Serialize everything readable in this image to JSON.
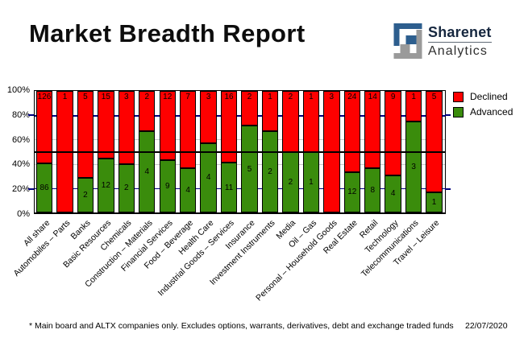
{
  "title": "Market Breadth Report",
  "logo": {
    "name": "Sharenet",
    "sub": "Analytics",
    "mark_blue": "#2d5e8e",
    "mark_gray": "#9a9a9a"
  },
  "legend": {
    "declined_label": "Declined",
    "advanced_label": "Advanced"
  },
  "colors": {
    "declined": "#fe0000",
    "advanced": "#3a8c0c",
    "grid_major": "#000080",
    "grid_minor": "#c8c8c8",
    "midline": "#000000"
  },
  "y_axis": {
    "tick_labels": [
      "100%",
      "80%",
      "60%",
      "40%",
      "20%",
      "0%"
    ],
    "tick_values": [
      100,
      80,
      60,
      40,
      20,
      0
    ],
    "outer_tick_values": [
      80,
      20
    ]
  },
  "chart_data": {
    "type": "bar",
    "stacked": true,
    "normalized_to_percent": true,
    "title": "Market Breadth Report",
    "xlabel": "",
    "ylabel": "",
    "ylim": [
      0,
      100
    ],
    "legend_position": "top-right",
    "midline_percent": 50,
    "gridlines": [
      {
        "value": 80,
        "style": "major"
      },
      {
        "value": 60,
        "style": "minor"
      },
      {
        "value": 40,
        "style": "minor"
      },
      {
        "value": 20,
        "style": "major"
      }
    ],
    "categories": [
      "All share",
      "Automobiles – Parts",
      "Banks",
      "Basic Resources",
      "Chemicals",
      "Construction – Materials",
      "Financial Services",
      "Food – Beverage",
      "Health Care",
      "Industrial Goods – Services",
      "Insurance",
      "Investment Instruments",
      "Media",
      "Oil – Gas",
      "Personal – Household Goods",
      "Real Estate",
      "Retail",
      "Technology",
      "Telecommunications",
      "Travel – Leisure"
    ],
    "series": [
      {
        "name": "Declined",
        "color": "#fe0000",
        "values": [
          126,
          1,
          5,
          15,
          3,
          2,
          12,
          7,
          3,
          16,
          2,
          1,
          2,
          1,
          3,
          24,
          14,
          9,
          1,
          5
        ]
      },
      {
        "name": "Advanced",
        "color": "#3a8c0c",
        "values": [
          86,
          0,
          2,
          12,
          2,
          4,
          9,
          4,
          4,
          11,
          5,
          2,
          2,
          1,
          0,
          12,
          8,
          4,
          3,
          1
        ]
      }
    ]
  },
  "footer": {
    "note": "* Main board and ALTX companies only. Excludes options, warrants, derivatives, debt and exchange traded funds",
    "date": "22/07/2020"
  }
}
